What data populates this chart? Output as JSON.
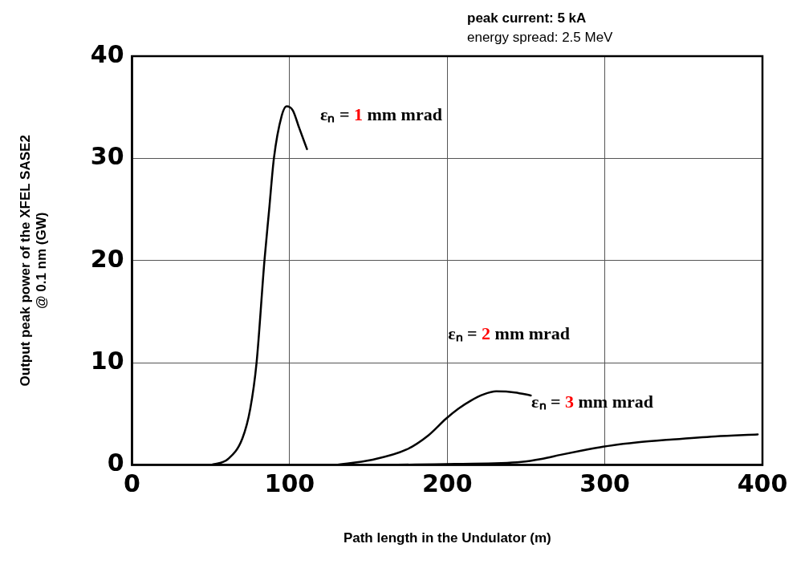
{
  "chart_data": {
    "type": "line",
    "xlabel": "Path length in the Undulator (m)",
    "ylabel": "Output peak power of the XFEL SASE2\n@ 0.1 nm (GW)",
    "annotations": [
      "peak current: 5 kA",
      "energy spread: 2.5 MeV"
    ],
    "xlim": [
      0,
      400
    ],
    "xticks": [
      0,
      100,
      200,
      300,
      400
    ],
    "ylim": [
      0,
      40
    ],
    "yticks": [
      0,
      10,
      20,
      30,
      40
    ],
    "grid": true,
    "legend": false,
    "marker": "none",
    "line_style": "solid",
    "series": [
      {
        "name": "εₙ = 1 mm mrad",
        "color": "#000000",
        "x": [
          50,
          61,
          70,
          75,
          79,
          84,
          87,
          90,
          95,
          98,
          102,
          106,
          111
        ],
        "values": [
          0,
          0.6,
          2.6,
          5.5,
          10,
          20,
          25,
          30,
          34.2,
          35.1,
          34.7,
          33,
          30.9
        ]
      },
      {
        "name": "εₙ = 2 mm mrad",
        "color": "#000000",
        "x": [
          129,
          152,
          174,
          188,
          199,
          207,
          215,
          223,
          231,
          243,
          253
        ],
        "values": [
          0,
          0.5,
          1.5,
          2.9,
          4.5,
          5.5,
          6.3,
          6.9,
          7.2,
          7.1,
          6.8
        ]
      },
      {
        "name": "εₙ = 3 mm mrad",
        "color": "#000000",
        "x": [
          150,
          205,
          247,
          260,
          272,
          285,
          299,
          320,
          343,
          370,
          397
        ],
        "values": [
          0,
          0.1,
          0.3,
          0.6,
          1,
          1.4,
          1.8,
          2.2,
          2.5,
          2.8,
          3.0
        ]
      }
    ]
  }
}
